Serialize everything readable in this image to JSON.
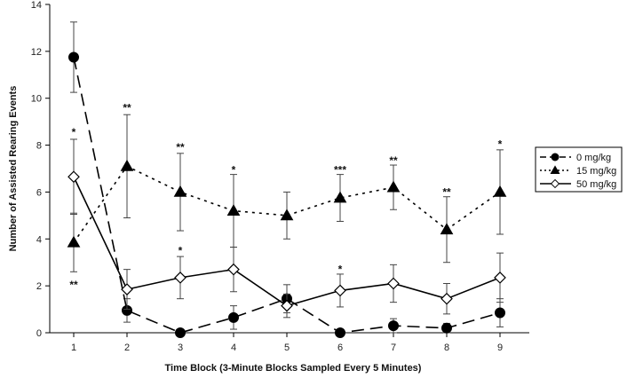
{
  "chart_data": {
    "type": "line",
    "xlabel": "Time Block (3-Minute Blocks Sampled Every 5 Minutes)",
    "ylabel": "Number of Assisted Rearing Events",
    "x": [
      1,
      2,
      3,
      4,
      5,
      6,
      7,
      8,
      9
    ],
    "xticks": [
      "1",
      "2",
      "3",
      "4",
      "5",
      "6",
      "7",
      "8",
      "9"
    ],
    "xlim": [
      0.55,
      9.55
    ],
    "ylim": [
      0,
      14
    ],
    "yticks": [
      "0",
      "2",
      "4",
      "6",
      "8",
      "10",
      "12",
      "14"
    ],
    "grid": false,
    "legend_position": "right",
    "series": [
      {
        "name": "0 mg/kg",
        "marker": "filled-circle",
        "dash": "long-dash",
        "color": "#000000",
        "values": [
          11.75,
          0.95,
          0.0,
          0.65,
          1.45,
          0.0,
          0.3,
          0.2,
          0.85
        ],
        "error": [
          1.5,
          0.5,
          0.0,
          0.5,
          0.6,
          0.0,
          0.3,
          0.2,
          0.6
        ]
      },
      {
        "name": "15 mg/kg",
        "marker": "filled-triangle",
        "dash": "dotted",
        "color": "#000000",
        "values": [
          3.85,
          7.1,
          6.0,
          5.2,
          5.0,
          5.75,
          6.2,
          4.4,
          6.0
        ],
        "error": [
          1.25,
          2.2,
          1.65,
          1.55,
          1.0,
          1.0,
          0.95,
          1.4,
          1.8
        ]
      },
      {
        "name": "50 mg/kg",
        "marker": "open-diamond",
        "dash": "solid",
        "color": "#000000",
        "values": [
          6.65,
          1.85,
          2.35,
          2.7,
          1.15,
          1.8,
          2.1,
          1.45,
          2.35
        ],
        "error": [
          1.6,
          0.85,
          0.9,
          0.95,
          0.5,
          0.7,
          0.8,
          0.65,
          1.05
        ]
      }
    ],
    "annotations": [
      {
        "x": 1,
        "y": 8.55,
        "text": "*"
      },
      {
        "x": 1,
        "y": 2.05,
        "text": "**"
      },
      {
        "x": 2,
        "y": 9.6,
        "text": "**"
      },
      {
        "x": 3,
        "y": 7.9,
        "text": "**"
      },
      {
        "x": 3,
        "y": 3.5,
        "text": "*"
      },
      {
        "x": 4,
        "y": 6.95,
        "text": "*"
      },
      {
        "x": 6,
        "y": 6.95,
        "text": "***"
      },
      {
        "x": 6,
        "y": 2.7,
        "text": "*"
      },
      {
        "x": 7,
        "y": 7.35,
        "text": "**"
      },
      {
        "x": 8,
        "y": 6.0,
        "text": "**"
      },
      {
        "x": 9,
        "y": 8.05,
        "text": "*"
      }
    ]
  }
}
